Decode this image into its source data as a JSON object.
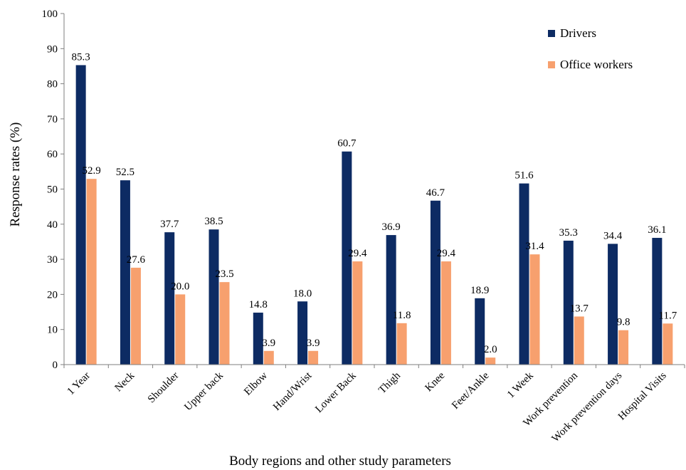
{
  "chart_data": {
    "type": "bar",
    "xlabel": "Body regions and other study parameters",
    "ylabel": "Response rates (%)",
    "ylim": [
      0,
      100
    ],
    "yticks": [
      0,
      10,
      20,
      30,
      40,
      50,
      60,
      70,
      80,
      90,
      100
    ],
    "grid": false,
    "legend_position": "top-right",
    "categories": [
      "1 Year",
      "Neck",
      "Shoulder",
      "Upper back",
      "Elbow",
      "Hand/Wrist",
      "Lower Back",
      "Thigh",
      "Knee",
      "Feet/Ankle",
      "1 Week",
      "Work prevention",
      "Work prevention days",
      "Hospital Visits"
    ],
    "series": [
      {
        "name": "Drivers",
        "color": "#0d2b63",
        "values": [
          85.3,
          52.5,
          37.7,
          38.5,
          14.8,
          18.0,
          60.7,
          36.9,
          46.7,
          18.9,
          51.6,
          35.3,
          34.4,
          36.1
        ],
        "labels": [
          "85.3",
          "52.5",
          "37.7",
          "38.5",
          "14.8",
          "18.0",
          "60.7",
          "36.9",
          "46.7",
          "18.9",
          "51.6",
          "35.3",
          "34.4",
          "36.1"
        ]
      },
      {
        "name": "Office workers",
        "color": "#f7a06e",
        "values": [
          52.9,
          27.6,
          20.0,
          23.5,
          3.9,
          3.9,
          29.4,
          11.8,
          29.4,
          2.0,
          31.4,
          13.7,
          9.8,
          11.7
        ],
        "labels": [
          "52.9",
          "27.6",
          "20.0",
          "23.5",
          "3.9",
          "3.9",
          "29.4",
          "11.8",
          "29.4",
          "2.0",
          "31.4",
          "13.7",
          "9.8",
          "11.7"
        ]
      }
    ]
  }
}
